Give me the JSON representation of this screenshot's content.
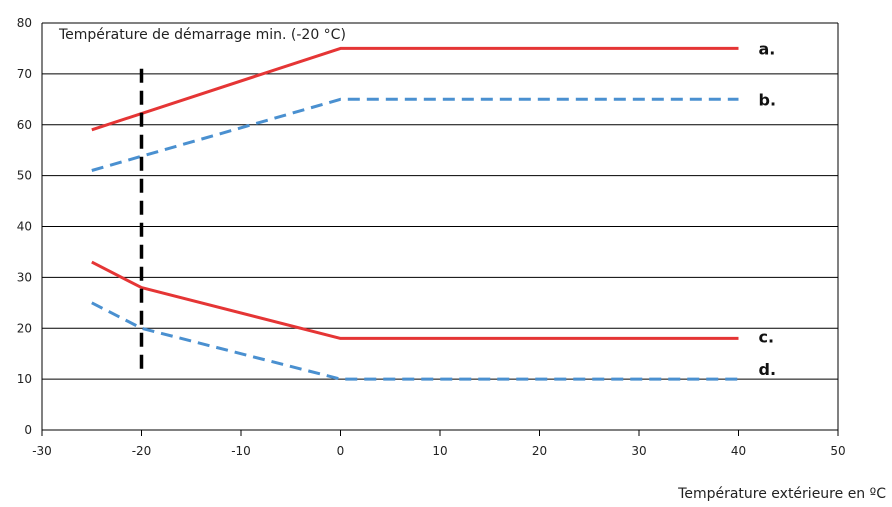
{
  "chart_data": {
    "type": "line",
    "title": "",
    "xlabel": "Température extérieure en ºC",
    "ylabel": "",
    "xlim": [
      -30,
      50
    ],
    "ylim": [
      0,
      80
    ],
    "x_ticks": [
      "-30",
      "-20",
      "-10",
      "0",
      "10",
      "20",
      "30",
      "40",
      "50"
    ],
    "y_ticks": [
      "0",
      "10",
      "20",
      "30",
      "40",
      "50",
      "60",
      "70",
      "80"
    ],
    "grid": "horizontal",
    "annotation": {
      "text": "Température de démarrage min. (-20 °C)",
      "x": -20
    },
    "series": [
      {
        "name": "a.",
        "color": "#e53535",
        "style": "solid",
        "points": [
          [
            -25,
            59
          ],
          [
            0,
            75
          ],
          [
            40,
            75
          ]
        ]
      },
      {
        "name": "b.",
        "color": "#4a90d0",
        "style": "dashed",
        "points": [
          [
            -25,
            51
          ],
          [
            0,
            65
          ],
          [
            40,
            65
          ]
        ]
      },
      {
        "name": "c.",
        "color": "#e53535",
        "style": "solid",
        "points": [
          [
            -25,
            33
          ],
          [
            -20,
            28
          ],
          [
            0,
            18
          ],
          [
            40,
            18
          ]
        ]
      },
      {
        "name": "d.",
        "color": "#4a90d0",
        "style": "dashed",
        "points": [
          [
            -25,
            25
          ],
          [
            -20,
            20
          ],
          [
            0,
            10
          ],
          [
            40,
            10
          ]
        ]
      }
    ]
  }
}
